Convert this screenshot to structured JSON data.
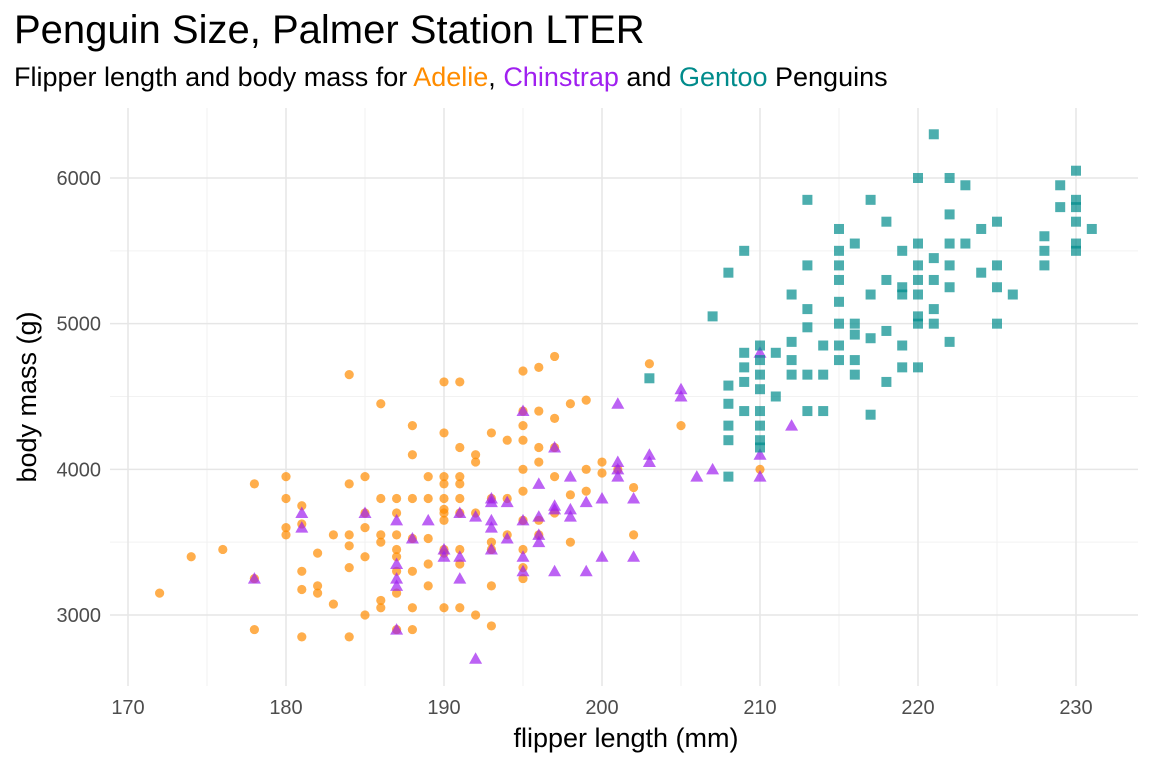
{
  "header": {
    "title": "Penguin Size, Palmer Station LTER",
    "subtitle": {
      "prefix": "Flipper length and body mass for ",
      "sep1": ", ",
      "sep2": " and ",
      "suffix": " Penguins"
    }
  },
  "chart_data": {
    "type": "scatter",
    "title": "Penguin Size, Palmer Station LTER",
    "xlabel": "flipper length (mm)",
    "ylabel": "body mass (g)",
    "xlim": [
      170,
      231
    ],
    "ylim": [
      2700,
      6300
    ],
    "xticks": [
      170,
      180,
      190,
      200,
      210,
      220,
      230
    ],
    "yticks": [
      3000,
      4000,
      5000,
      6000
    ],
    "grid": true,
    "series": [
      {
        "name": "Adelie",
        "color": "#FF8C00",
        "marker": "circle",
        "points": [
          [
            172,
            3150
          ],
          [
            174,
            3400
          ],
          [
            176,
            3450
          ],
          [
            178,
            3900
          ],
          [
            178,
            2900
          ],
          [
            178,
            3250
          ],
          [
            180,
            3950
          ],
          [
            180,
            3800
          ],
          [
            180,
            3600
          ],
          [
            180,
            3550
          ],
          [
            181,
            3750
          ],
          [
            181,
            3625
          ],
          [
            181,
            3300
          ],
          [
            181,
            3175
          ],
          [
            181,
            2850
          ],
          [
            182,
            3425
          ],
          [
            182,
            3200
          ],
          [
            182,
            3150
          ],
          [
            183,
            3550
          ],
          [
            183,
            3075
          ],
          [
            184,
            4650
          ],
          [
            184,
            3900
          ],
          [
            184,
            3550
          ],
          [
            184,
            3475
          ],
          [
            184,
            3325
          ],
          [
            184,
            2850
          ],
          [
            185,
            3950
          ],
          [
            185,
            3700
          ],
          [
            185,
            3600
          ],
          [
            185,
            3400
          ],
          [
            185,
            3000
          ],
          [
            186,
            4450
          ],
          [
            186,
            3800
          ],
          [
            186,
            3550
          ],
          [
            186,
            3500
          ],
          [
            186,
            3100
          ],
          [
            186,
            3050
          ],
          [
            187,
            3800
          ],
          [
            187,
            3700
          ],
          [
            187,
            3550
          ],
          [
            187,
            3450
          ],
          [
            187,
            3400
          ],
          [
            187,
            3300
          ],
          [
            187,
            3150
          ],
          [
            187,
            2900
          ],
          [
            188,
            4300
          ],
          [
            188,
            4100
          ],
          [
            188,
            3800
          ],
          [
            188,
            3525
          ],
          [
            188,
            3300
          ],
          [
            188,
            3050
          ],
          [
            188,
            2900
          ],
          [
            189,
            3950
          ],
          [
            189,
            3800
          ],
          [
            189,
            3525
          ],
          [
            189,
            3350
          ],
          [
            189,
            3200
          ],
          [
            190,
            4600
          ],
          [
            190,
            4250
          ],
          [
            190,
            3950
          ],
          [
            190,
            3900
          ],
          [
            190,
            3800
          ],
          [
            190,
            3725
          ],
          [
            190,
            3700
          ],
          [
            190,
            3650
          ],
          [
            190,
            3450
          ],
          [
            190,
            3425
          ],
          [
            190,
            3050
          ],
          [
            191,
            4600
          ],
          [
            191,
            4150
          ],
          [
            191,
            3950
          ],
          [
            191,
            3900
          ],
          [
            191,
            3800
          ],
          [
            191,
            3700
          ],
          [
            191,
            3450
          ],
          [
            191,
            3350
          ],
          [
            191,
            3050
          ],
          [
            192,
            4100
          ],
          [
            192,
            4050
          ],
          [
            192,
            3700
          ],
          [
            192,
            3000
          ],
          [
            193,
            4250
          ],
          [
            193,
            3800
          ],
          [
            193,
            3500
          ],
          [
            193,
            3450
          ],
          [
            193,
            3200
          ],
          [
            193,
            2925
          ],
          [
            194,
            4200
          ],
          [
            194,
            3800
          ],
          [
            194,
            3550
          ],
          [
            195,
            4675
          ],
          [
            195,
            4400
          ],
          [
            195,
            4300
          ],
          [
            195,
            4200
          ],
          [
            195,
            4000
          ],
          [
            195,
            3850
          ],
          [
            195,
            3650
          ],
          [
            195,
            3450
          ],
          [
            195,
            3325
          ],
          [
            195,
            3250
          ],
          [
            196,
            4700
          ],
          [
            196,
            4400
          ],
          [
            196,
            4150
          ],
          [
            196,
            4050
          ],
          [
            196,
            3650
          ],
          [
            196,
            3550
          ],
          [
            197,
            4775
          ],
          [
            197,
            4350
          ],
          [
            197,
            4150
          ],
          [
            197,
            3950
          ],
          [
            197,
            3700
          ],
          [
            198,
            4450
          ],
          [
            198,
            3825
          ],
          [
            198,
            3500
          ],
          [
            199,
            4475
          ],
          [
            199,
            4000
          ],
          [
            199,
            3850
          ],
          [
            200,
            4050
          ],
          [
            200,
            3975
          ],
          [
            201,
            4000
          ],
          [
            202,
            3875
          ],
          [
            202,
            3550
          ],
          [
            203,
            4725
          ],
          [
            205,
            4300
          ],
          [
            210,
            4000
          ]
        ]
      },
      {
        "name": "Chinstrap",
        "color": "#A020F0",
        "marker": "triangle",
        "points": [
          [
            178,
            3250
          ],
          [
            181,
            3700
          ],
          [
            181,
            3600
          ],
          [
            185,
            3700
          ],
          [
            187,
            3650
          ],
          [
            187,
            3350
          ],
          [
            187,
            3250
          ],
          [
            187,
            3200
          ],
          [
            187,
            2900
          ],
          [
            188,
            3525
          ],
          [
            189,
            3650
          ],
          [
            190,
            3450
          ],
          [
            190,
            3400
          ],
          [
            191,
            3700
          ],
          [
            191,
            3400
          ],
          [
            191,
            3250
          ],
          [
            192,
            3675
          ],
          [
            192,
            2700
          ],
          [
            193,
            3800
          ],
          [
            193,
            3775
          ],
          [
            193,
            3650
          ],
          [
            193,
            3600
          ],
          [
            193,
            3450
          ],
          [
            194,
            3775
          ],
          [
            194,
            3525
          ],
          [
            195,
            4400
          ],
          [
            195,
            3650
          ],
          [
            195,
            3400
          ],
          [
            195,
            3300
          ],
          [
            196,
            3900
          ],
          [
            196,
            3675
          ],
          [
            196,
            3550
          ],
          [
            196,
            3500
          ],
          [
            197,
            4150
          ],
          [
            197,
            3750
          ],
          [
            197,
            3725
          ],
          [
            197,
            3300
          ],
          [
            198,
            3950
          ],
          [
            198,
            3725
          ],
          [
            198,
            3675
          ],
          [
            199,
            3775
          ],
          [
            199,
            3300
          ],
          [
            200,
            3800
          ],
          [
            200,
            3400
          ],
          [
            201,
            4450
          ],
          [
            201,
            4050
          ],
          [
            201,
            4000
          ],
          [
            201,
            3950
          ],
          [
            202,
            3800
          ],
          [
            202,
            3400
          ],
          [
            203,
            4100
          ],
          [
            203,
            4050
          ],
          [
            205,
            4550
          ],
          [
            205,
            4500
          ],
          [
            206,
            3950
          ],
          [
            207,
            4000
          ],
          [
            210,
            4800
          ],
          [
            210,
            4100
          ],
          [
            210,
            3950
          ],
          [
            212,
            4300
          ]
        ]
      },
      {
        "name": "Gentoo",
        "color": "#008B8B",
        "marker": "square",
        "points": [
          [
            203,
            4625
          ],
          [
            207,
            5050
          ],
          [
            208,
            5350
          ],
          [
            208,
            4575
          ],
          [
            208,
            4450
          ],
          [
            208,
            4300
          ],
          [
            208,
            4200
          ],
          [
            208,
            3950
          ],
          [
            209,
            5500
          ],
          [
            209,
            4800
          ],
          [
            209,
            4700
          ],
          [
            209,
            4600
          ],
          [
            209,
            4400
          ],
          [
            210,
            4850
          ],
          [
            210,
            4750
          ],
          [
            210,
            4650
          ],
          [
            210,
            4550
          ],
          [
            210,
            4400
          ],
          [
            210,
            4300
          ],
          [
            210,
            4200
          ],
          [
            210,
            4150
          ],
          [
            211,
            4800
          ],
          [
            211,
            4500
          ],
          [
            212,
            5200
          ],
          [
            212,
            4875
          ],
          [
            212,
            4750
          ],
          [
            212,
            4650
          ],
          [
            213,
            5850
          ],
          [
            213,
            5400
          ],
          [
            213,
            5100
          ],
          [
            213,
            4975
          ],
          [
            213,
            4650
          ],
          [
            213,
            4400
          ],
          [
            214,
            4850
          ],
          [
            214,
            4650
          ],
          [
            214,
            4400
          ],
          [
            215,
            5650
          ],
          [
            215,
            5500
          ],
          [
            215,
            5400
          ],
          [
            215,
            5300
          ],
          [
            215,
            5150
          ],
          [
            215,
            5000
          ],
          [
            215,
            4850
          ],
          [
            215,
            4750
          ],
          [
            216,
            5550
          ],
          [
            216,
            5000
          ],
          [
            216,
            4925
          ],
          [
            216,
            4750
          ],
          [
            216,
            4650
          ],
          [
            217,
            5850
          ],
          [
            217,
            5200
          ],
          [
            217,
            4900
          ],
          [
            217,
            4375
          ],
          [
            218,
            5700
          ],
          [
            218,
            5300
          ],
          [
            218,
            4950
          ],
          [
            218,
            4600
          ],
          [
            219,
            5500
          ],
          [
            219,
            5250
          ],
          [
            219,
            5200
          ],
          [
            219,
            4850
          ],
          [
            219,
            4700
          ],
          [
            220,
            6000
          ],
          [
            220,
            5550
          ],
          [
            220,
            5400
          ],
          [
            220,
            5300
          ],
          [
            220,
            5200
          ],
          [
            220,
            5050
          ],
          [
            220,
            5000
          ],
          [
            220,
            4700
          ],
          [
            221,
            6300
          ],
          [
            221,
            5450
          ],
          [
            221,
            5300
          ],
          [
            221,
            5100
          ],
          [
            221,
            5000
          ],
          [
            222,
            6000
          ],
          [
            222,
            5750
          ],
          [
            222,
            5550
          ],
          [
            222,
            5400
          ],
          [
            222,
            5250
          ],
          [
            222,
            4875
          ],
          [
            223,
            5950
          ],
          [
            223,
            5550
          ],
          [
            224,
            5650
          ],
          [
            224,
            5350
          ],
          [
            225,
            5700
          ],
          [
            225,
            5400
          ],
          [
            225,
            5250
          ],
          [
            225,
            5000
          ],
          [
            226,
            5200
          ],
          [
            228,
            5600
          ],
          [
            228,
            5500
          ],
          [
            228,
            5400
          ],
          [
            229,
            5950
          ],
          [
            229,
            5800
          ],
          [
            230,
            6050
          ],
          [
            230,
            5850
          ],
          [
            230,
            5800
          ],
          [
            230,
            5700
          ],
          [
            230,
            5550
          ],
          [
            230,
            5500
          ],
          [
            231,
            5650
          ]
        ]
      }
    ]
  }
}
